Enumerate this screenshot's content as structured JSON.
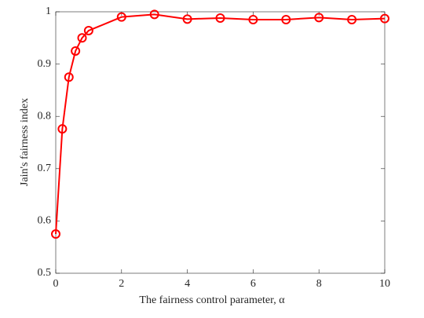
{
  "chart_data": {
    "type": "line",
    "x_label": "The fairness control parameter, α",
    "y_label": "Jain's fairness index",
    "x": [
      0,
      0.2,
      0.4,
      0.6,
      0.8,
      1,
      2,
      3,
      4,
      5,
      6,
      7,
      8,
      9,
      10
    ],
    "values": [
      0.575,
      0.776,
      0.875,
      0.925,
      0.95,
      0.964,
      0.99,
      0.995,
      0.986,
      0.988,
      0.985,
      0.985,
      0.989,
      0.985,
      0.987
    ],
    "color": "#ff0000",
    "xlim": [
      0,
      10
    ],
    "xticks": [
      0,
      2,
      4,
      6,
      8,
      10
    ],
    "ylim": [
      0.5,
      1
    ],
    "yticks": [
      0.5,
      0.6,
      0.7,
      0.8,
      0.9,
      1
    ],
    "grid": false
  }
}
